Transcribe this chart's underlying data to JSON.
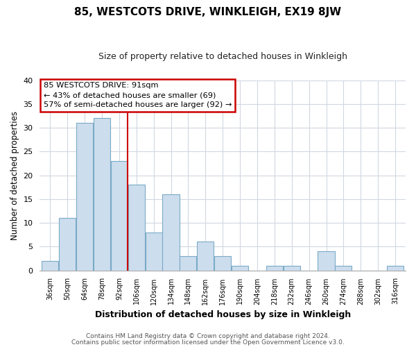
{
  "title": "85, WESTCOTS DRIVE, WINKLEIGH, EX19 8JW",
  "subtitle": "Size of property relative to detached houses in Winkleigh",
  "xlabel": "Distribution of detached houses by size in Winkleigh",
  "ylabel": "Number of detached properties",
  "bar_color": "#ccdded",
  "bar_edge_color": "#7aaac8",
  "bin_labels": [
    "36sqm",
    "50sqm",
    "64sqm",
    "78sqm",
    "92sqm",
    "106sqm",
    "120sqm",
    "134sqm",
    "148sqm",
    "162sqm",
    "176sqm",
    "190sqm",
    "204sqm",
    "218sqm",
    "232sqm",
    "246sqm",
    "260sqm",
    "274sqm",
    "288sqm",
    "302sqm",
    "316sqm"
  ],
  "bin_counts": [
    2,
    11,
    31,
    32,
    23,
    18,
    8,
    16,
    3,
    6,
    3,
    1,
    0,
    1,
    1,
    0,
    4,
    1,
    0,
    0,
    1
  ],
  "ylim": [
    0,
    40
  ],
  "yticks": [
    0,
    5,
    10,
    15,
    20,
    25,
    30,
    35,
    40
  ],
  "vline_color": "#cc0000",
  "vline_x": 4.5,
  "annotation_title": "85 WESTCOTS DRIVE: 91sqm",
  "annotation_line1": "← 43% of detached houses are smaller (69)",
  "annotation_line2": "57% of semi-detached houses are larger (92) →",
  "annotation_box_color": "#ffffff",
  "annotation_box_edge": "#cc0000",
  "footer1": "Contains HM Land Registry data © Crown copyright and database right 2024.",
  "footer2": "Contains public sector information licensed under the Open Government Licence v3.0.",
  "background_color": "#ffffff",
  "grid_color": "#d0d8e0"
}
